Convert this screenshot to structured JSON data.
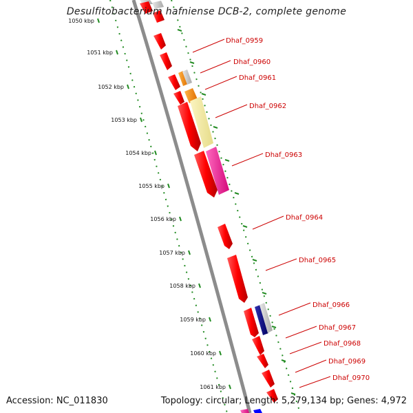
{
  "title": "Desulfitobacterium hafniense DCB-2, complete genome",
  "accession_text": "Accession: NC_011830",
  "summary_text": "Topology: circular; Length: 5,279,134 bp; Genes: 4,972",
  "colors": {
    "backbone": "#8c8c8c",
    "ruler": "#228b22",
    "cds": "#ff0000",
    "label": "#cc0000",
    "orange": "#ff8c00",
    "yellow": "#f0e68c",
    "pink": "#ff1493",
    "navy": "#000080",
    "grey": "#c0c0c0",
    "blue": "#0000ff"
  },
  "ruler_ticks": [
    {
      "label": "1050 kbp"
    },
    {
      "label": "1051 kbp"
    },
    {
      "label": "1052 kbp"
    },
    {
      "label": "1053 kbp"
    },
    {
      "label": "1054 kbp"
    },
    {
      "label": "1055 kbp"
    },
    {
      "label": "1056 kbp"
    },
    {
      "label": "1057 kbp"
    },
    {
      "label": "1058 kbp"
    },
    {
      "label": "1059 kbp"
    },
    {
      "label": "1060 kbp"
    },
    {
      "label": "1061 kbp"
    }
  ],
  "gene_labels": [
    "Dhaf_0959",
    "Dhaf_0960",
    "Dhaf_0961",
    "Dhaf_0962",
    "Dhaf_0963",
    "Dhaf_0964",
    "Dhaf_0965",
    "Dhaf_0966",
    "Dhaf_0967",
    "Dhaf_0968",
    "Dhaf_0969",
    "Dhaf_0970"
  ]
}
